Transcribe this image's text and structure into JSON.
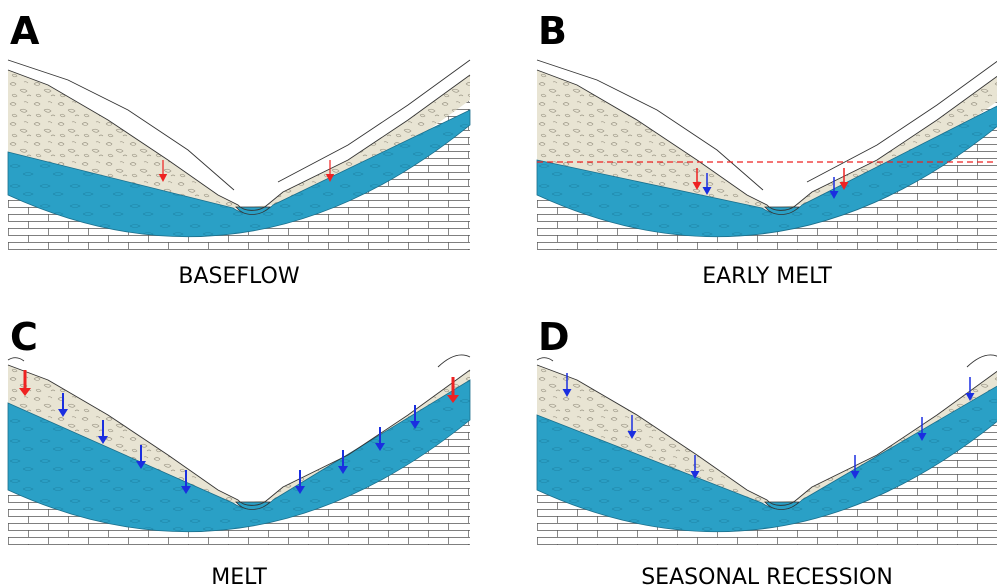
{
  "panels": [
    {
      "letter": "A",
      "caption": "BASEFLOW"
    },
    {
      "letter": "B",
      "caption": "EARLY MELT"
    },
    {
      "letter": "C",
      "caption": "MELT"
    },
    {
      "letter": "D",
      "caption": "SEASONAL RECESSION"
    }
  ]
}
